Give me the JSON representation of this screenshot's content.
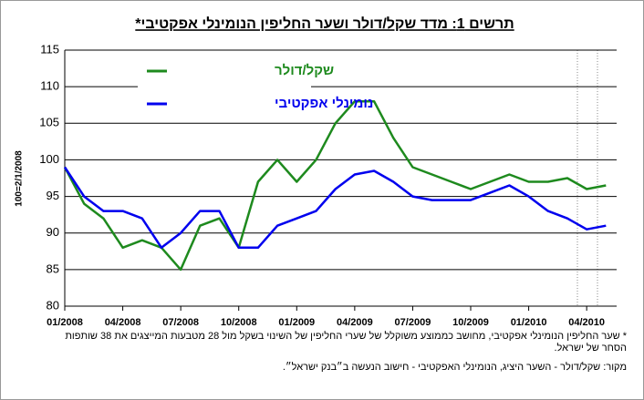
{
  "chart_data": {
    "type": "line",
    "title": "תרשים 1: מדד שקל/דולר ושער החליפין הנומינלי אפקטיבי*",
    "y_label": "100=2/1/2008",
    "x": [
      "01/2008",
      "02/2008",
      "03/2008",
      "04/2008",
      "05/2008",
      "06/2008",
      "07/2008",
      "08/2008",
      "09/2008",
      "10/2008",
      "11/2008",
      "12/2008",
      "01/2009",
      "02/2009",
      "03/2009",
      "04/2009",
      "05/2009",
      "06/2009",
      "07/2009",
      "08/2009",
      "09/2009",
      "10/2009",
      "11/2009",
      "12/2009",
      "01/2010",
      "02/2010",
      "03/2010",
      "04/2010",
      "05/2010"
    ],
    "xticks": [
      "01/2008",
      "04/2008",
      "07/2008",
      "10/2008",
      "01/2009",
      "04/2009",
      "07/2009",
      "10/2009",
      "01/2010",
      "04/2010"
    ],
    "ylim": [
      80,
      115
    ],
    "yticks": [
      80,
      85,
      90,
      95,
      100,
      105,
      110,
      115
    ],
    "grid": true,
    "series": [
      {
        "name": "שקל/דולר",
        "color": "#1e8a1e",
        "values": [
          99,
          94,
          92,
          88,
          89,
          88,
          85,
          91,
          92,
          88,
          97,
          100,
          97,
          100,
          105,
          108,
          108,
          103,
          99,
          98,
          97,
          96,
          97,
          98,
          97,
          97,
          97.5,
          96,
          96.5
        ]
      },
      {
        "name": "נומינלי אפקטיבי",
        "color": "#0000ee",
        "values": [
          99,
          95,
          93,
          93,
          92,
          88,
          90,
          93,
          93,
          88,
          88,
          91,
          92,
          93,
          96,
          98,
          98.5,
          97,
          95,
          94.5,
          94.5,
          94.5,
          95.5,
          96.5,
          95,
          93,
          92,
          90.5,
          91
        ]
      }
    ],
    "footnotes": [
      "* שער החליפין הנומינלי אפקטיבי, מחושב כממוצע משוקלל של שערי החליפין של השינוי בשקל מול 28 מטבעות המייצגים את 38 שותפות הסחר של ישראל.",
      "מקור: שקל/דולר - השער היציג, הנומינלי האפקטיבי - חישוב הנעשה ב״בנק ישראל״."
    ]
  }
}
